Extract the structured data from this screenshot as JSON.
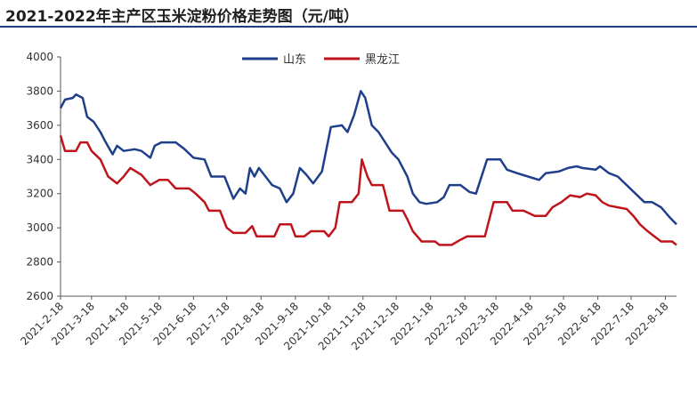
{
  "chart_data": {
    "type": "line",
    "title": "2021-2022年主产区玉米淀粉价格走势图（元/吨）",
    "xlabel": "",
    "ylabel": "",
    "ylim": [
      2600,
      4000
    ],
    "yticks": [
      2600,
      2800,
      3000,
      3200,
      3400,
      3600,
      3800,
      4000
    ],
    "xlim": [
      "2021-02-18",
      "2022-08-28"
    ],
    "xticks": [
      "2021-2-18",
      "2021-3-18",
      "2021-4-18",
      "2021-5-18",
      "2021-6-18",
      "2021-7-18",
      "2021-8-18",
      "2021-9-18",
      "2021-10-18",
      "2021-11-18",
      "2021-12-18",
      "2022-1-18",
      "2022-2-18",
      "2022-3-18",
      "2022-4-18",
      "2022-5-18",
      "2022-6-18",
      "2022-7-18",
      "2022-8-18"
    ],
    "grid": false,
    "legend_position": "top-right",
    "series": [
      {
        "name": "山东",
        "color": "#1f3f8a",
        "points": [
          [
            "2021-02-18",
            3700
          ],
          [
            "2021-02-22",
            3750
          ],
          [
            "2021-03-01",
            3760
          ],
          [
            "2021-03-04",
            3780
          ],
          [
            "2021-03-10",
            3760
          ],
          [
            "2021-03-14",
            3650
          ],
          [
            "2021-03-20",
            3620
          ],
          [
            "2021-03-26",
            3560
          ],
          [
            "2021-03-30",
            3510
          ],
          [
            "2021-04-06",
            3430
          ],
          [
            "2021-04-10",
            3480
          ],
          [
            "2021-04-16",
            3450
          ],
          [
            "2021-04-26",
            3460
          ],
          [
            "2021-05-02",
            3450
          ],
          [
            "2021-05-10",
            3410
          ],
          [
            "2021-05-14",
            3480
          ],
          [
            "2021-05-20",
            3500
          ],
          [
            "2021-06-02",
            3500
          ],
          [
            "2021-06-10",
            3460
          ],
          [
            "2021-06-18",
            3410
          ],
          [
            "2021-06-28",
            3400
          ],
          [
            "2021-07-04",
            3300
          ],
          [
            "2021-07-16",
            3300
          ],
          [
            "2021-07-24",
            3170
          ],
          [
            "2021-07-30",
            3230
          ],
          [
            "2021-08-04",
            3200
          ],
          [
            "2021-08-08",
            3350
          ],
          [
            "2021-08-12",
            3300
          ],
          [
            "2021-08-16",
            3350
          ],
          [
            "2021-08-22",
            3300
          ],
          [
            "2021-08-28",
            3250
          ],
          [
            "2021-09-04",
            3230
          ],
          [
            "2021-09-10",
            3150
          ],
          [
            "2021-09-16",
            3200
          ],
          [
            "2021-09-22",
            3350
          ],
          [
            "2021-09-28",
            3310
          ],
          [
            "2021-10-04",
            3260
          ],
          [
            "2021-10-12",
            3330
          ],
          [
            "2021-10-20",
            3590
          ],
          [
            "2021-10-30",
            3600
          ],
          [
            "2021-11-04",
            3560
          ],
          [
            "2021-11-10",
            3660
          ],
          [
            "2021-11-16",
            3800
          ],
          [
            "2021-11-20",
            3760
          ],
          [
            "2021-11-26",
            3600
          ],
          [
            "2021-12-02",
            3560
          ],
          [
            "2021-12-08",
            3500
          ],
          [
            "2021-12-14",
            3440
          ],
          [
            "2021-12-20",
            3400
          ],
          [
            "2021-12-28",
            3300
          ],
          [
            "2022-01-02",
            3200
          ],
          [
            "2022-01-08",
            3150
          ],
          [
            "2022-01-14",
            3140
          ],
          [
            "2022-01-24",
            3150
          ],
          [
            "2022-01-30",
            3180
          ],
          [
            "2022-02-04",
            3250
          ],
          [
            "2022-02-14",
            3250
          ],
          [
            "2022-02-22",
            3210
          ],
          [
            "2022-02-28",
            3200
          ],
          [
            "2022-03-06",
            3320
          ],
          [
            "2022-03-10",
            3400
          ],
          [
            "2022-03-22",
            3400
          ],
          [
            "2022-03-28",
            3340
          ],
          [
            "2022-04-06",
            3320
          ],
          [
            "2022-04-16",
            3300
          ],
          [
            "2022-04-26",
            3280
          ],
          [
            "2022-05-02",
            3320
          ],
          [
            "2022-05-14",
            3330
          ],
          [
            "2022-05-22",
            3350
          ],
          [
            "2022-05-30",
            3360
          ],
          [
            "2022-06-04",
            3350
          ],
          [
            "2022-06-16",
            3340
          ],
          [
            "2022-06-20",
            3360
          ],
          [
            "2022-06-28",
            3320
          ],
          [
            "2022-07-06",
            3300
          ],
          [
            "2022-07-14",
            3250
          ],
          [
            "2022-07-22",
            3200
          ],
          [
            "2022-07-30",
            3150
          ],
          [
            "2022-08-06",
            3150
          ],
          [
            "2022-08-14",
            3120
          ],
          [
            "2022-08-22",
            3060
          ],
          [
            "2022-08-28",
            3020
          ]
        ]
      },
      {
        "name": "黑龙江",
        "color": "#c0141c",
        "points": [
          [
            "2021-02-18",
            3540
          ],
          [
            "2021-02-22",
            3450
          ],
          [
            "2021-03-04",
            3450
          ],
          [
            "2021-03-08",
            3500
          ],
          [
            "2021-03-14",
            3500
          ],
          [
            "2021-03-18",
            3450
          ],
          [
            "2021-03-26",
            3400
          ],
          [
            "2021-04-02",
            3300
          ],
          [
            "2021-04-10",
            3260
          ],
          [
            "2021-04-16",
            3300
          ],
          [
            "2021-04-22",
            3350
          ],
          [
            "2021-05-02",
            3310
          ],
          [
            "2021-05-10",
            3250
          ],
          [
            "2021-05-18",
            3280
          ],
          [
            "2021-05-26",
            3280
          ],
          [
            "2021-06-02",
            3230
          ],
          [
            "2021-06-14",
            3230
          ],
          [
            "2021-06-20",
            3200
          ],
          [
            "2021-06-28",
            3150
          ],
          [
            "2021-07-02",
            3100
          ],
          [
            "2021-07-12",
            3100
          ],
          [
            "2021-07-18",
            3000
          ],
          [
            "2021-07-24",
            2970
          ],
          [
            "2021-08-04",
            2970
          ],
          [
            "2021-08-10",
            3010
          ],
          [
            "2021-08-14",
            2950
          ],
          [
            "2021-08-30",
            2950
          ],
          [
            "2021-09-04",
            3020
          ],
          [
            "2021-09-14",
            3020
          ],
          [
            "2021-09-18",
            2950
          ],
          [
            "2021-09-26",
            2950
          ],
          [
            "2021-10-02",
            2980
          ],
          [
            "2021-10-14",
            2980
          ],
          [
            "2021-10-18",
            2950
          ],
          [
            "2021-10-24",
            3000
          ],
          [
            "2021-10-28",
            3150
          ],
          [
            "2021-11-08",
            3150
          ],
          [
            "2021-11-14",
            3200
          ],
          [
            "2021-11-17",
            3400
          ],
          [
            "2021-11-22",
            3300
          ],
          [
            "2021-11-26",
            3250
          ],
          [
            "2021-12-06",
            3250
          ],
          [
            "2021-12-12",
            3100
          ],
          [
            "2021-12-24",
            3100
          ],
          [
            "2021-12-28",
            3050
          ],
          [
            "2022-01-02",
            2980
          ],
          [
            "2022-01-06",
            2950
          ],
          [
            "2022-01-10",
            2920
          ],
          [
            "2022-01-22",
            2920
          ],
          [
            "2022-01-26",
            2900
          ],
          [
            "2022-02-06",
            2900
          ],
          [
            "2022-02-14",
            2930
          ],
          [
            "2022-02-20",
            2950
          ],
          [
            "2022-03-08",
            2950
          ],
          [
            "2022-03-12",
            3050
          ],
          [
            "2022-03-16",
            3150
          ],
          [
            "2022-03-28",
            3150
          ],
          [
            "2022-04-02",
            3100
          ],
          [
            "2022-04-12",
            3100
          ],
          [
            "2022-04-22",
            3070
          ],
          [
            "2022-05-02",
            3070
          ],
          [
            "2022-05-08",
            3120
          ],
          [
            "2022-05-16",
            3150
          ],
          [
            "2022-05-24",
            3190
          ],
          [
            "2022-06-02",
            3180
          ],
          [
            "2022-06-08",
            3200
          ],
          [
            "2022-06-16",
            3190
          ],
          [
            "2022-06-22",
            3150
          ],
          [
            "2022-06-28",
            3130
          ],
          [
            "2022-07-06",
            3120
          ],
          [
            "2022-07-14",
            3110
          ],
          [
            "2022-07-20",
            3070
          ],
          [
            "2022-07-26",
            3020
          ],
          [
            "2022-08-02",
            2980
          ],
          [
            "2022-08-08",
            2950
          ],
          [
            "2022-08-14",
            2920
          ],
          [
            "2022-08-24",
            2920
          ],
          [
            "2022-08-28",
            2900
          ]
        ]
      }
    ]
  }
}
